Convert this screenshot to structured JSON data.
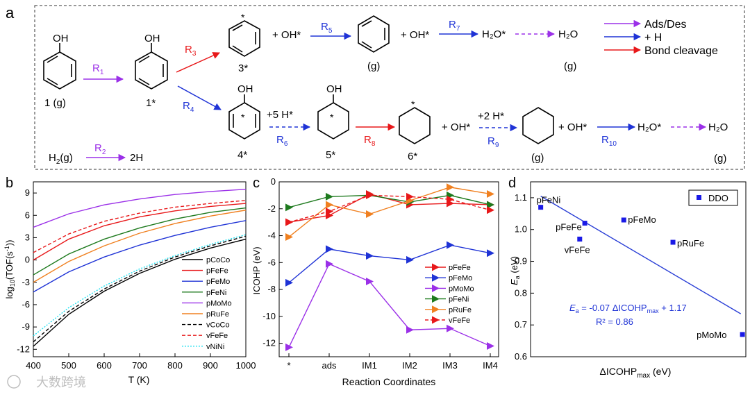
{
  "panel_labels": {
    "a": "a",
    "b": "b",
    "c": "c",
    "d": "d"
  },
  "scheme": {
    "legend": [
      "Ads/Des",
      "+ H",
      "Bond cleavage"
    ],
    "species": {
      "s1g": "1 (g)",
      "s1": "1*",
      "s3": "3*",
      "s4": "4*",
      "s5": "5*",
      "s6": "6*",
      "g_benzene": "(g)",
      "g_h2o_top": "(g)",
      "g_cyclohexane": "(g)",
      "g_h2o_bottom": "(g)",
      "oh": "OH",
      "star": "*",
      "oh_star": "+ OH*",
      "five_h": "+5 H*",
      "two_h": "+2 H*",
      "h2o_star": "H₂O*",
      "h2o": "H₂O",
      "h2g": "H₂(g)",
      "two_h_atoms": "2H"
    },
    "reactions": [
      "R1",
      "R2",
      "R3",
      "R4",
      "R5",
      "R6",
      "R7",
      "R8",
      "R9",
      "R10"
    ]
  },
  "colors": {
    "ads": "#9b30e8",
    "hydro": "#1f33d6",
    "cleave": "#e8181a",
    "panel_d_line": "#2a3fd6",
    "panel_d_marker": "#1a1ae6"
  },
  "chart_data": [
    {
      "panel": "b",
      "type": "line",
      "xlabel": "T (K)",
      "ylabel": "log10(TOF(s-1))",
      "xlim": [
        400,
        1000
      ],
      "ylim": [
        -13,
        10.5
      ],
      "xticks": [
        400,
        500,
        600,
        700,
        800,
        900,
        1000
      ],
      "yticks": [
        -12,
        -9,
        -6,
        -3,
        0,
        3,
        6,
        9
      ],
      "legend_position": "lower-right",
      "series": [
        {
          "name": "pCoCo",
          "color": "#000000",
          "dash": "solid",
          "x": [
            400,
            500,
            600,
            700,
            800,
            900,
            1000
          ],
          "y": [
            -11.6,
            -7.3,
            -4.2,
            -1.8,
            0.1,
            1.6,
            2.8
          ]
        },
        {
          "name": "pFeFe",
          "color": "#e8181a",
          "dash": "solid",
          "x": [
            400,
            500,
            600,
            700,
            800,
            900,
            1000
          ],
          "y": [
            0.0,
            2.8,
            4.6,
            5.8,
            6.6,
            7.2,
            7.6
          ]
        },
        {
          "name": "pFeMo",
          "color": "#1f33d6",
          "dash": "solid",
          "x": [
            400,
            500,
            600,
            700,
            800,
            900,
            1000
          ],
          "y": [
            -4.3,
            -1.6,
            0.4,
            2.0,
            3.3,
            4.4,
            5.3
          ]
        },
        {
          "name": "pFeNi",
          "color": "#1e7a1e",
          "dash": "solid",
          "x": [
            400,
            500,
            600,
            700,
            800,
            900,
            1000
          ],
          "y": [
            -2.0,
            0.8,
            2.8,
            4.3,
            5.5,
            6.4,
            7.0
          ]
        },
        {
          "name": "pMoMo",
          "color": "#9b30e8",
          "dash": "solid",
          "x": [
            400,
            500,
            600,
            700,
            800,
            900,
            1000
          ],
          "y": [
            4.4,
            6.2,
            7.4,
            8.2,
            8.8,
            9.2,
            9.5
          ]
        },
        {
          "name": "pRuFe",
          "color": "#f08020",
          "dash": "solid",
          "x": [
            400,
            500,
            600,
            700,
            800,
            900,
            1000
          ],
          "y": [
            -3.0,
            -0.2,
            1.9,
            3.6,
            4.9,
            5.9,
            6.7
          ]
        },
        {
          "name": "vCoCo",
          "color": "#000000",
          "dash": "dash",
          "x": [
            400,
            500,
            600,
            700,
            800,
            900,
            1000
          ],
          "y": [
            -11.0,
            -6.9,
            -3.9,
            -1.5,
            0.4,
            1.9,
            3.2
          ]
        },
        {
          "name": "vFeFe",
          "color": "#e8181a",
          "dash": "dash",
          "x": [
            400,
            500,
            600,
            700,
            800,
            900,
            1000
          ],
          "y": [
            1.0,
            3.5,
            5.2,
            6.3,
            7.1,
            7.6,
            8.0
          ]
        },
        {
          "name": "vNiNi",
          "color": "#22e0f0",
          "dash": "dot",
          "x": [
            400,
            500,
            600,
            700,
            800,
            900,
            1000
          ],
          "y": [
            -10.2,
            -6.4,
            -3.5,
            -1.2,
            0.6,
            2.1,
            3.4
          ]
        }
      ]
    },
    {
      "panel": "c",
      "type": "line",
      "xlabel": "Reaction Coordinates",
      "ylabel": "ICOHP (eV)",
      "categories": [
        "*",
        "ads",
        "IM1",
        "IM2",
        "IM3",
        "IM4"
      ],
      "ylim": [
        -13,
        0
      ],
      "yticks": [
        0,
        -2,
        -4,
        -6,
        -8,
        -10,
        -12
      ],
      "legend_position": "right",
      "series": [
        {
          "name": "pFeFe",
          "color": "#e8181a",
          "dash": "solid",
          "values": [
            -3.0,
            -2.5,
            -0.9,
            -1.7,
            -1.6,
            -1.7
          ]
        },
        {
          "name": "pFeMo",
          "color": "#1f33d6",
          "dash": "solid",
          "values": [
            -7.5,
            -5.0,
            -5.5,
            -5.8,
            -4.7,
            -5.3
          ]
        },
        {
          "name": "pMoMo",
          "color": "#9b30e8",
          "dash": "solid",
          "values": [
            -12.3,
            -6.1,
            -7.4,
            -11.0,
            -10.9,
            -12.2
          ]
        },
        {
          "name": "pFeNi",
          "color": "#1e7a1e",
          "dash": "solid",
          "values": [
            -1.9,
            -1.1,
            -1.0,
            -1.5,
            -1.0,
            -1.7
          ]
        },
        {
          "name": "pRuFe",
          "color": "#f08020",
          "dash": "solid",
          "values": [
            -4.1,
            -1.7,
            -2.4,
            -1.4,
            -0.4,
            -0.9
          ]
        },
        {
          "name": "vFeFe",
          "color": "#e8181a",
          "dash": "dash",
          "values": [
            -3.0,
            -2.2,
            -1.0,
            -1.1,
            -1.3,
            -2.1
          ]
        }
      ]
    },
    {
      "panel": "d",
      "type": "scatter",
      "xlabel": "ΔICOHPmax (eV)",
      "ylabel": "Ea (eV)",
      "ylim": [
        0.6,
        1.15
      ],
      "yticks": [
        0.6,
        0.7,
        0.8,
        0.9,
        1.0,
        1.1
      ],
      "xlim": [
        -13.0,
        -0.3
      ],
      "legend": "DDO",
      "legend_position": "top-right",
      "points": [
        {
          "label": "pFeNi",
          "x": -12.4,
          "y": 1.07
        },
        {
          "label": "pFeFe",
          "x": -9.8,
          "y": 1.02
        },
        {
          "label": "vFeFe",
          "x": -10.1,
          "y": 0.97
        },
        {
          "label": "pFeMo",
          "x": -7.5,
          "y": 1.03
        },
        {
          "label": "pRuFe",
          "x": -4.6,
          "y": 0.96
        },
        {
          "label": "pMoMo",
          "x": -0.5,
          "y": 0.67
        }
      ],
      "fit": {
        "slope": -0.07,
        "intercept": 1.17,
        "equation_prefix": "Ea = ",
        "equation": "-0.07 ΔICOHPmax + 1.17",
        "r2": "R² = 0.86"
      }
    }
  ],
  "watermark": "大数跨境"
}
